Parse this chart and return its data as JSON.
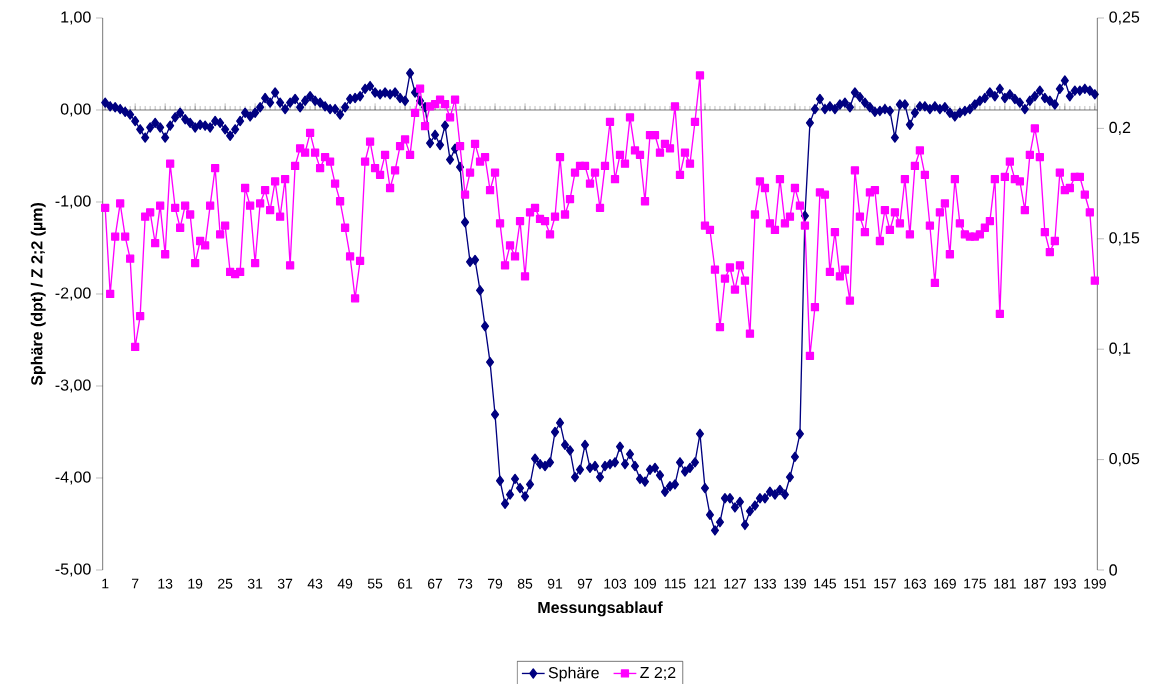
{
  "chart_data": {
    "type": "line",
    "categories": [
      "1",
      null,
      null,
      null,
      null,
      null,
      "7",
      null,
      null,
      null,
      null,
      null,
      "13",
      null,
      null,
      null,
      null,
      null,
      "19",
      null,
      null,
      null,
      null,
      null,
      "25",
      null,
      null,
      null,
      null,
      null,
      "31",
      null,
      null,
      null,
      null,
      null,
      "37",
      null,
      null,
      null,
      null,
      null,
      "43",
      null,
      null,
      null,
      null,
      null,
      "49",
      null,
      null,
      null,
      null,
      null,
      "55",
      null,
      null,
      null,
      null,
      null,
      "61",
      null,
      null,
      null,
      null,
      null,
      "67",
      null,
      null,
      null,
      null,
      null,
      "73",
      null,
      null,
      null,
      null,
      null,
      "79",
      null,
      null,
      null,
      null,
      null,
      "85",
      null,
      null,
      null,
      null,
      null,
      "91",
      null,
      null,
      null,
      null,
      null,
      "97",
      null,
      null,
      null,
      null,
      null,
      "103",
      null,
      null,
      null,
      null,
      null,
      "109",
      null,
      null,
      null,
      null,
      null,
      "115",
      null,
      null,
      null,
      null,
      null,
      "121",
      null,
      null,
      null,
      null,
      null,
      "127",
      null,
      null,
      null,
      null,
      null,
      "133",
      null,
      null,
      null,
      null,
      null,
      "139",
      null,
      null,
      null,
      null,
      null,
      "145",
      null,
      null,
      null,
      null,
      null,
      "151",
      null,
      null,
      null,
      null,
      null,
      "157",
      null,
      null,
      null,
      null,
      null,
      "163",
      null,
      null,
      null,
      null,
      null,
      "169",
      null,
      null,
      null,
      null,
      null,
      "175",
      null,
      null,
      null,
      null,
      null,
      "181",
      null,
      null,
      null,
      null,
      null,
      "187",
      null,
      null,
      null,
      null,
      null,
      "193",
      null,
      null,
      null,
      null,
      null,
      "199"
    ],
    "series": [
      {
        "name": "Sphäre",
        "color": "#000080",
        "marker": "diamond",
        "values": [
          0.08,
          0.04,
          0.03,
          0.01,
          -0.02,
          -0.05,
          -0.12,
          -0.21,
          -0.3,
          -0.19,
          -0.14,
          -0.19,
          -0.3,
          -0.17,
          -0.08,
          -0.03,
          -0.1,
          -0.14,
          -0.19,
          -0.16,
          -0.17,
          -0.19,
          -0.12,
          -0.14,
          -0.21,
          -0.28,
          -0.21,
          -0.12,
          -0.03,
          -0.07,
          -0.03,
          0.03,
          0.13,
          0.08,
          0.19,
          0.08,
          0.01,
          0.08,
          0.12,
          0.03,
          0.1,
          0.15,
          0.1,
          0.08,
          0.04,
          0.01,
          0.01,
          -0.05,
          0.03,
          0.12,
          0.13,
          0.15,
          0.23,
          0.26,
          0.19,
          0.17,
          0.19,
          0.17,
          0.19,
          0.13,
          0.1,
          0.4,
          0.19,
          0.1,
          0.03,
          -0.36,
          -0.27,
          -0.38,
          -0.17,
          -0.54,
          -0.42,
          -0.62,
          -1.22,
          -1.65,
          -1.63,
          -1.96,
          -2.35,
          -2.74,
          -3.31,
          -4.03,
          -4.28,
          -4.18,
          -4.01,
          -4.11,
          -4.2,
          -4.07,
          -3.79,
          -3.85,
          -3.87,
          -3.83,
          -3.5,
          -3.4,
          -3.64,
          -3.7,
          -3.99,
          -3.91,
          -3.64,
          -3.89,
          -3.87,
          -3.99,
          -3.87,
          -3.85,
          -3.83,
          -3.66,
          -3.85,
          -3.74,
          -3.87,
          -4.01,
          -4.04,
          -3.91,
          -3.89,
          -3.97,
          -4.15,
          -4.09,
          -4.07,
          -3.83,
          -3.93,
          -3.89,
          -3.83,
          -3.52,
          -4.11,
          -4.4,
          -4.57,
          -4.48,
          -4.22,
          -4.22,
          -4.32,
          -4.26,
          -4.51,
          -4.36,
          -4.3,
          -4.22,
          -4.22,
          -4.15,
          -4.18,
          -4.13,
          -4.18,
          -3.99,
          -3.77,
          -3.52,
          -1.15,
          -0.14,
          0.01,
          0.12,
          0.01,
          0.04,
          0.01,
          0.06,
          0.08,
          0.03,
          0.19,
          0.14,
          0.08,
          0.03,
          -0.02,
          -0.01,
          0.01,
          -0.01,
          -0.3,
          0.06,
          0.06,
          -0.16,
          -0.03,
          0.04,
          0.04,
          0.01,
          0.04,
          0.01,
          0.03,
          -0.03,
          -0.07,
          -0.03,
          -0.01,
          0.01,
          0.06,
          0.1,
          0.13,
          0.19,
          0.15,
          0.23,
          0.13,
          0.17,
          0.12,
          0.08,
          0.01,
          0.1,
          0.15,
          0.21,
          0.13,
          0.1,
          0.06,
          0.23,
          0.32,
          0.15,
          0.21,
          0.21,
          0.23,
          0.21,
          0.17
        ]
      },
      {
        "name": "Z 2;2",
        "color": "#ff00ff",
        "marker": "square",
        "axis": "y2",
        "values": [
          0.164,
          0.125,
          0.151,
          0.166,
          0.151,
          0.141,
          0.101,
          0.115,
          0.16,
          0.162,
          0.148,
          0.165,
          0.143,
          0.184,
          0.164,
          0.155,
          0.165,
          0.161,
          0.139,
          0.149,
          0.147,
          0.165,
          0.182,
          0.152,
          0.156,
          0.135,
          0.134,
          0.135,
          0.173,
          0.165,
          0.139,
          0.166,
          0.172,
          0.163,
          0.176,
          0.16,
          0.177,
          0.138,
          0.183,
          0.191,
          0.189,
          0.198,
          0.189,
          0.182,
          0.187,
          0.185,
          0.175,
          0.167,
          0.155,
          0.142,
          0.123,
          0.14,
          0.185,
          0.194,
          0.182,
          0.179,
          0.188,
          0.173,
          0.181,
          0.192,
          0.195,
          0.188,
          0.207,
          0.218,
          0.201,
          0.21,
          0.211,
          0.213,
          0.211,
          0.205,
          0.213,
          0.192,
          0.17,
          0.18,
          0.193,
          0.185,
          0.187,
          0.172,
          0.18,
          0.157,
          0.138,
          0.147,
          0.142,
          0.158,
          0.133,
          0.162,
          0.164,
          0.159,
          0.158,
          0.152,
          0.16,
          0.187,
          0.161,
          0.168,
          0.18,
          0.183,
          0.183,
          0.175,
          0.18,
          0.164,
          0.183,
          0.203,
          0.177,
          0.188,
          0.184,
          0.205,
          0.19,
          0.188,
          0.167,
          0.197,
          0.197,
          0.189,
          0.193,
          0.191,
          0.21,
          0.179,
          0.189,
          0.184,
          0.203,
          0.224,
          0.156,
          0.154,
          0.136,
          0.11,
          0.132,
          0.137,
          0.127,
          0.138,
          0.131,
          0.107,
          0.161,
          0.176,
          0.173,
          0.157,
          0.154,
          0.177,
          0.157,
          0.16,
          0.173,
          0.165,
          0.156,
          0.097,
          0.119,
          0.171,
          0.17,
          0.135,
          0.153,
          0.133,
          0.136,
          0.122,
          0.181,
          0.16,
          0.153,
          0.171,
          0.172,
          0.149,
          0.163,
          0.154,
          0.162,
          0.157,
          0.177,
          0.152,
          0.183,
          0.19,
          0.179,
          0.156,
          0.13,
          0.162,
          0.166,
          0.143,
          0.177,
          0.157,
          0.152,
          0.151,
          0.151,
          0.152,
          0.155,
          0.158,
          0.177,
          0.116,
          0.178,
          0.185,
          0.177,
          0.176,
          0.163,
          0.188,
          0.2,
          0.187,
          0.153,
          0.144,
          0.149,
          0.18,
          0.172,
          0.173,
          0.178,
          0.178,
          0.17,
          0.162,
          0.131
        ]
      }
    ],
    "xlabel": "Messungsablauf",
    "ylabel": "Sphäre (dpt) / Z 2;2 (µm)",
    "ylim": [
      -5,
      1
    ],
    "yticks": [
      {
        "value": 1,
        "label": "1,00"
      },
      {
        "value": 0,
        "label": "0,00"
      },
      {
        "value": -1,
        "label": "-1,00"
      },
      {
        "value": -2,
        "label": "-2,00"
      },
      {
        "value": -3,
        "label": "-3,00"
      },
      {
        "value": -4,
        "label": "-4,00"
      },
      {
        "value": -5,
        "label": "-5,00"
      }
    ],
    "y2lim": [
      0,
      0.25
    ],
    "y2ticks": [
      {
        "value": 0.25,
        "label": "0,25"
      },
      {
        "value": 0.2,
        "label": "0,2"
      },
      {
        "value": 0.15,
        "label": "0,15"
      },
      {
        "value": 0.1,
        "label": "0,1"
      },
      {
        "value": 0.05,
        "label": "0,05"
      },
      0
    ],
    "legend": "bottom"
  }
}
